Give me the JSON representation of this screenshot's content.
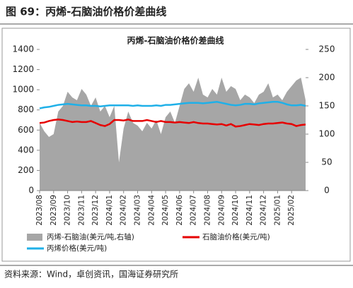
{
  "chart_data": {
    "type": "line",
    "title": "图 69：丙烯-石脑油价格价差曲线",
    "subtitle": "丙烯-石脑油价格价差曲线",
    "source": "资料来源：Wind，卓创资讯，国海证券研究所",
    "categories": [
      "2023/08",
      null,
      null,
      "2023/09",
      null,
      null,
      "2023/10",
      null,
      null,
      "2023/11",
      null,
      null,
      "2023/12",
      null,
      null,
      "2024/01",
      null,
      null,
      "2024/02",
      null,
      null,
      "2024/03",
      null,
      null,
      "2024/04",
      null,
      null,
      "2024/05",
      null,
      null,
      "2024/06",
      null,
      null,
      "2024/07",
      null,
      null,
      "2024/08",
      null,
      null,
      "2024/09",
      null,
      null,
      "2024/10",
      null,
      null,
      "2024/11",
      null,
      null,
      "2024/12",
      null,
      null,
      "2025/01",
      null,
      null,
      "2025/02",
      null,
      null,
      null
    ],
    "ylim": [
      0,
      1400
    ],
    "yticks": [
      0,
      200,
      400,
      600,
      800,
      1000,
      1200,
      1400
    ],
    "y2lim": [
      0,
      250
    ],
    "y2ticks": [
      0,
      50,
      100,
      150,
      200,
      250
    ],
    "grid": false,
    "series": [
      {
        "name": "丙烯-石脑油(美元/吨,右轴)",
        "color": "#a6a6a6",
        "kind": "area",
        "axis": "y2",
        "values": [
          120,
          105,
          95,
          100,
          140,
          150,
          175,
          165,
          160,
          180,
          170,
          150,
          165,
          140,
          150,
          130,
          150,
          50,
          110,
          140,
          120,
          115,
          105,
          120,
          110,
          125,
          100,
          130,
          140,
          120,
          150,
          180,
          190,
          175,
          200,
          170,
          165,
          180,
          170,
          200,
          175,
          185,
          180,
          160,
          170,
          165,
          155,
          170,
          175,
          190,
          165,
          170,
          160,
          175,
          185,
          195,
          200,
          160
        ]
      },
      {
        "name": "石脑油价格(美元/吨)",
        "color": "#e60000",
        "kind": "line",
        "values": [
          670,
          675,
          690,
          700,
          705,
          700,
          690,
          680,
          685,
          680,
          680,
          690,
          670,
          650,
          640,
          660,
          700,
          700,
          695,
          705,
          690,
          690,
          690,
          700,
          690,
          680,
          690,
          680,
          680,
          675,
          680,
          675,
          670,
          680,
          670,
          665,
          665,
          660,
          655,
          660,
          645,
          660,
          635,
          640,
          650,
          660,
          655,
          650,
          660,
          665,
          665,
          670,
          675,
          665,
          660,
          640,
          650,
          655
        ]
      },
      {
        "name": "丙烯价格(美元/吨)",
        "color": "#1fb0e8",
        "kind": "line",
        "values": [
          815,
          825,
          830,
          840,
          850,
          855,
          860,
          855,
          850,
          845,
          845,
          840,
          840,
          835,
          840,
          845,
          845,
          845,
          845,
          845,
          840,
          845,
          840,
          840,
          840,
          845,
          840,
          850,
          850,
          855,
          860,
          865,
          870,
          870,
          870,
          865,
          870,
          875,
          880,
          870,
          860,
          850,
          845,
          850,
          860,
          860,
          855,
          865,
          870,
          875,
          880,
          880,
          870,
          855,
          845,
          845,
          850,
          840
        ]
      }
    ]
  }
}
